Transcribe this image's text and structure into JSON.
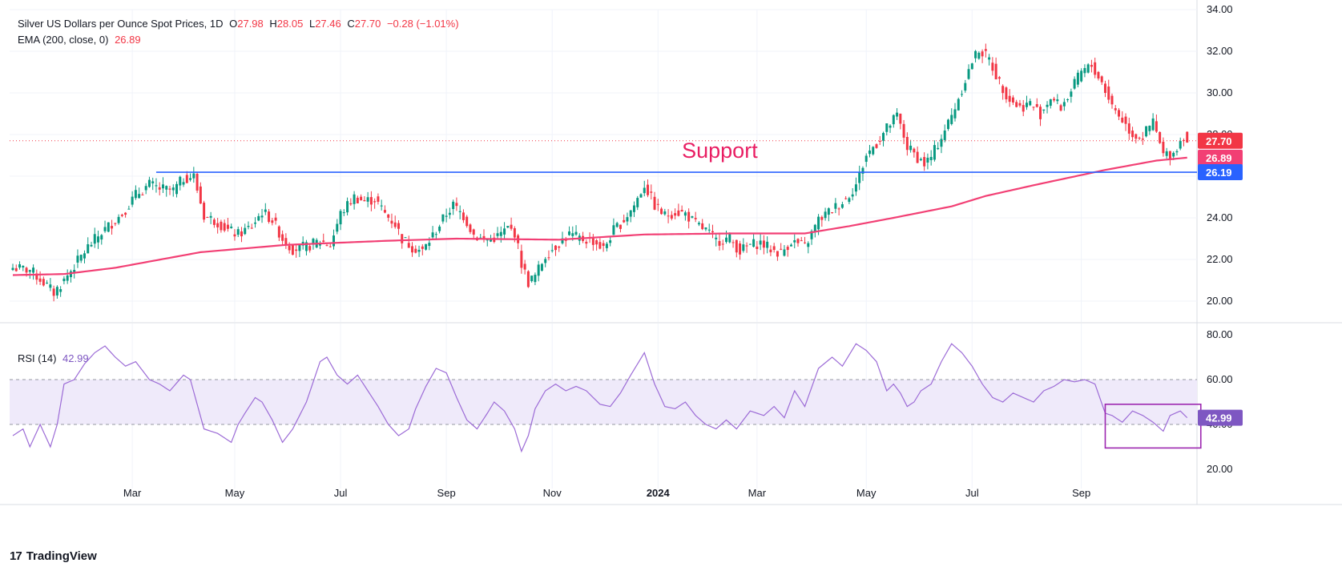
{
  "legend": {
    "title": "Silver US Dollars per Ounce Spot Prices, 1D",
    "o_label": "O",
    "o_value": "27.98",
    "h_label": "H",
    "h_value": "28.05",
    "l_label": "L",
    "l_value": "27.46",
    "c_label": "C",
    "c_value": "27.70",
    "change": "−0.28 (−1.01%)",
    "ema_label": "EMA (200, close, 0)",
    "ema_value": "26.89",
    "rsi_label": "RSI (14)",
    "rsi_value": "42.99"
  },
  "annotation": {
    "text": "Support"
  },
  "brand": {
    "name": "TradingView",
    "logo": "17"
  },
  "colors": {
    "up": "#089981",
    "down": "#f23645",
    "ema": "#f23f74",
    "rsi": "#9c6bd6",
    "support": "#2962ff",
    "rsi_band": "#efeafa"
  },
  "chart_data": [
    {
      "type": "candlestick",
      "title": "Silver US Dollars per Ounce Spot Prices, 1D",
      "timeframe": "1D",
      "ylim": [
        19,
        34
      ],
      "y_ticks": [
        "20.00",
        "22.00",
        "24.00",
        "26.00",
        "28.00",
        "30.00",
        "32.00",
        "34.00"
      ],
      "x_ticks": [
        "Mar",
        "May",
        "Jul",
        "Sep",
        "Nov",
        "2024",
        "Mar",
        "May",
        "Jul",
        "Sep"
      ],
      "last_price": "27.70",
      "ema200_last": "26.89",
      "support_level": "26.19",
      "support_label": "Support",
      "series": [
        {
          "name": "Price",
          "anchors": [
            [
              0,
              21.6
            ],
            [
              5,
              21.5
            ],
            [
              9,
              20.9
            ],
            [
              12,
              20.4
            ],
            [
              15,
              21.0
            ],
            [
              18,
              21.7
            ],
            [
              22,
              22.6
            ],
            [
              26,
              23.3
            ],
            [
              32,
              24.2
            ],
            [
              36,
              25.1
            ],
            [
              40,
              25.6
            ],
            [
              43,
              25.4
            ],
            [
              47,
              25.3
            ],
            [
              50,
              25.9
            ],
            [
              53,
              26.0
            ],
            [
              56,
              24.1
            ],
            [
              60,
              23.8
            ],
            [
              63,
              23.4
            ],
            [
              66,
              23.2
            ],
            [
              70,
              23.6
            ],
            [
              73,
              24.3
            ],
            [
              76,
              23.9
            ],
            [
              79,
              23.0
            ],
            [
              82,
              22.5
            ],
            [
              86,
              22.6
            ],
            [
              90,
              22.9
            ],
            [
              93,
              22.7
            ],
            [
              96,
              24.2
            ],
            [
              100,
              25.0
            ],
            [
              103,
              24.8
            ],
            [
              106,
              24.9
            ],
            [
              109,
              24.2
            ],
            [
              112,
              23.7
            ],
            [
              114,
              23.0
            ],
            [
              117,
              22.6
            ],
            [
              120,
              22.4
            ],
            [
              124,
              23.4
            ],
            [
              127,
              24.2
            ],
            [
              129,
              24.6
            ],
            [
              132,
              24.1
            ],
            [
              135,
              23.2
            ],
            [
              138,
              22.9
            ],
            [
              142,
              23.1
            ],
            [
              145,
              23.5
            ],
            [
              147,
              23.3
            ],
            [
              149,
              21.8
            ],
            [
              151,
              20.9
            ],
            [
              153,
              21.2
            ],
            [
              156,
              22.2
            ],
            [
              160,
              22.8
            ],
            [
              163,
              23.2
            ],
            [
              166,
              23.0
            ],
            [
              170,
              22.9
            ],
            [
              173,
              22.5
            ],
            [
              176,
              23.4
            ],
            [
              179,
              23.9
            ],
            [
              182,
              24.6
            ],
            [
              185,
              25.6
            ],
            [
              188,
              24.6
            ],
            [
              191,
              24.1
            ],
            [
              194,
              24.3
            ],
            [
              197,
              24.2
            ],
            [
              200,
              23.7
            ],
            [
              203,
              23.4
            ],
            [
              206,
              22.9
            ],
            [
              210,
              23.0
            ],
            [
              213,
              22.4
            ],
            [
              216,
              22.7
            ],
            [
              219,
              22.8
            ],
            [
              222,
              22.5
            ],
            [
              225,
              22.3
            ],
            [
              228,
              22.9
            ],
            [
              232,
              22.6
            ],
            [
              236,
              23.9
            ],
            [
              240,
              24.4
            ],
            [
              244,
              24.9
            ],
            [
              247,
              25.6
            ],
            [
              250,
              27.0
            ],
            [
              253,
              27.6
            ],
            [
              256,
              28.3
            ],
            [
              259,
              28.9
            ],
            [
              262,
              27.4
            ],
            [
              265,
              26.9
            ],
            [
              267,
              26.6
            ],
            [
              269,
              26.9
            ],
            [
              272,
              27.9
            ],
            [
              275,
              28.9
            ],
            [
              278,
              30.2
            ],
            [
              281,
              31.5
            ],
            [
              283,
              32.1
            ],
            [
              286,
              31.6
            ],
            [
              289,
              30.5
            ],
            [
              292,
              29.7
            ],
            [
              295,
              29.3
            ],
            [
              298,
              29.5
            ],
            [
              301,
              29.0
            ],
            [
              304,
              29.8
            ],
            [
              307,
              29.3
            ],
            [
              310,
              30.1
            ],
            [
              313,
              31.0
            ],
            [
              316,
              31.3
            ],
            [
              319,
              30.5
            ],
            [
              322,
              29.4
            ],
            [
              325,
              28.7
            ],
            [
              328,
              28.0
            ],
            [
              331,
              27.9
            ],
            [
              334,
              28.6
            ],
            [
              337,
              27.0
            ],
            [
              340,
              27.1
            ],
            [
              343,
              27.98
            ],
            [
              344,
              27.7
            ]
          ]
        },
        {
          "name": "EMA (200, close, 0)",
          "anchors": [
            [
              0,
              21.25
            ],
            [
              15,
              21.3
            ],
            [
              30,
              21.6
            ],
            [
              55,
              22.35
            ],
            [
              80,
              22.7
            ],
            [
              110,
              22.9
            ],
            [
              130,
              23.0
            ],
            [
              160,
              22.95
            ],
            [
              185,
              23.2
            ],
            [
              210,
              23.25
            ],
            [
              232,
              23.25
            ],
            [
              245,
              23.6
            ],
            [
              258,
              24.0
            ],
            [
              275,
              24.55
            ],
            [
              285,
              25.05
            ],
            [
              300,
              25.6
            ],
            [
              320,
              26.3
            ],
            [
              335,
              26.75
            ],
            [
              344,
              26.89
            ]
          ]
        }
      ]
    },
    {
      "type": "line",
      "title": "RSI (14)",
      "last_value": "42.99",
      "ylim": [
        15,
        85
      ],
      "y_ticks": [
        "20.00",
        "40.00",
        "60.00",
        "80.00"
      ],
      "band": [
        40,
        60
      ],
      "series": [
        {
          "name": "RSI (14)",
          "anchors": [
            [
              0,
              35
            ],
            [
              3,
              38
            ],
            [
              5,
              30
            ],
            [
              8,
              40
            ],
            [
              11,
              30
            ],
            [
              13,
              40
            ],
            [
              15,
              58
            ],
            [
              18,
              60
            ],
            [
              21,
              67
            ],
            [
              24,
              72
            ],
            [
              27,
              75
            ],
            [
              30,
              70
            ],
            [
              33,
              66
            ],
            [
              36,
              68
            ],
            [
              40,
              60
            ],
            [
              43,
              58
            ],
            [
              46,
              55
            ],
            [
              50,
              62
            ],
            [
              52,
              60
            ],
            [
              56,
              38
            ],
            [
              60,
              36
            ],
            [
              64,
              32
            ],
            [
              66,
              40
            ],
            [
              68,
              45
            ],
            [
              71,
              52
            ],
            [
              73,
              50
            ],
            [
              76,
              42
            ],
            [
              79,
              32
            ],
            [
              82,
              38
            ],
            [
              86,
              50
            ],
            [
              90,
              68
            ],
            [
              92,
              70
            ],
            [
              95,
              62
            ],
            [
              98,
              58
            ],
            [
              101,
              62
            ],
            [
              104,
              55
            ],
            [
              107,
              48
            ],
            [
              110,
              40
            ],
            [
              113,
              35
            ],
            [
              116,
              38
            ],
            [
              118,
              47
            ],
            [
              121,
              57
            ],
            [
              124,
              65
            ],
            [
              127,
              63
            ],
            [
              130,
              52
            ],
            [
              133,
              42
            ],
            [
              136,
              38
            ],
            [
              139,
              45
            ],
            [
              141,
              50
            ],
            [
              144,
              46
            ],
            [
              147,
              38
            ],
            [
              149,
              28
            ],
            [
              151,
              35
            ],
            [
              153,
              47
            ],
            [
              156,
              55
            ],
            [
              159,
              58
            ],
            [
              162,
              55
            ],
            [
              165,
              57
            ],
            [
              168,
              55
            ],
            [
              172,
              49
            ],
            [
              175,
              48
            ],
            [
              178,
              54
            ],
            [
              181,
              62
            ],
            [
              185,
              72
            ],
            [
              188,
              58
            ],
            [
              191,
              48
            ],
            [
              194,
              47
            ],
            [
              197,
              50
            ],
            [
              200,
              44
            ],
            [
              203,
              40
            ],
            [
              206,
              38
            ],
            [
              209,
              42
            ],
            [
              212,
              38
            ],
            [
              216,
              46
            ],
            [
              220,
              44
            ],
            [
              223,
              48
            ],
            [
              226,
              43
            ],
            [
              229,
              55
            ],
            [
              232,
              48
            ],
            [
              236,
              65
            ],
            [
              240,
              70
            ],
            [
              243,
              66
            ],
            [
              247,
              76
            ],
            [
              250,
              73
            ],
            [
              253,
              68
            ],
            [
              256,
              55
            ],
            [
              258,
              58
            ],
            [
              260,
              54
            ],
            [
              262,
              48
            ],
            [
              264,
              50
            ],
            [
              266,
              55
            ],
            [
              269,
              58
            ],
            [
              272,
              68
            ],
            [
              275,
              76
            ],
            [
              278,
              72
            ],
            [
              281,
              66
            ],
            [
              284,
              58
            ],
            [
              287,
              52
            ],
            [
              290,
              50
            ],
            [
              293,
              54
            ],
            [
              296,
              52
            ],
            [
              299,
              50
            ],
            [
              302,
              55
            ],
            [
              305,
              57
            ],
            [
              308,
              60
            ],
            [
              311,
              59
            ],
            [
              314,
              60
            ],
            [
              317,
              58
            ],
            [
              320,
              45
            ],
            [
              322,
              44
            ],
            [
              325,
              41
            ],
            [
              328,
              46
            ],
            [
              331,
              44
            ],
            [
              334,
              41
            ],
            [
              337,
              37
            ],
            [
              339,
              44
            ],
            [
              342,
              46
            ],
            [
              344,
              42.99
            ]
          ]
        }
      ]
    }
  ]
}
